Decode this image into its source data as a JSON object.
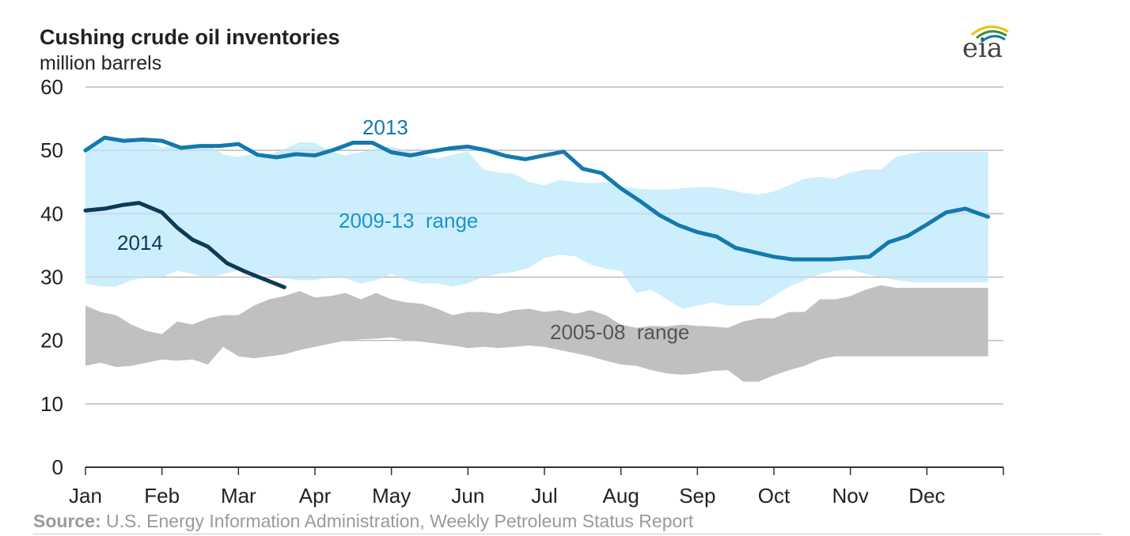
{
  "chart_data": {
    "type": "area",
    "title": "Cushing crude oil inventories",
    "subtitle": "million barrels",
    "ylim": [
      0,
      60
    ],
    "y_ticks": [
      0,
      10,
      20,
      30,
      40,
      50,
      60
    ],
    "grid": true,
    "x_ticks": [
      "Jan",
      "Feb",
      "Mar",
      "Apr",
      "May",
      "Jun",
      "Jul",
      "Aug",
      "Sep",
      "Oct",
      "Nov",
      "Dec"
    ],
    "bands": [
      {
        "name": "2009-13  range",
        "color": "#cdeefc",
        "x": [
          0,
          0.2,
          0.4,
          0.6,
          0.8,
          1.0,
          1.2,
          1.4,
          1.6,
          1.8,
          2.0,
          2.2,
          2.4,
          2.6,
          2.8,
          3.0,
          3.2,
          3.4,
          3.6,
          3.8,
          4.0,
          4.2,
          4.4,
          4.6,
          4.8,
          5.0,
          5.2,
          5.4,
          5.6,
          5.8,
          6.0,
          6.2,
          6.4,
          6.6,
          6.8,
          7.0,
          7.2,
          7.4,
          7.6,
          7.8,
          8.0,
          8.2,
          8.4,
          8.6,
          8.8,
          9.0,
          9.2,
          9.4,
          9.6,
          9.8,
          10.0,
          10.2,
          10.4,
          10.6,
          10.8,
          11.0,
          11.2,
          11.4,
          11.6,
          11.8
        ],
        "upper": [
          50,
          52,
          51.5,
          51.7,
          51.5,
          50.5,
          50.7,
          50.7,
          51,
          49.3,
          49,
          49.5,
          49.2,
          50.2,
          51.3,
          51.2,
          49.8,
          49.2,
          49.7,
          50.3,
          50.6,
          50,
          49.2,
          48.7,
          49.3,
          49.8,
          47,
          46.5,
          46.3,
          45,
          44.5,
          45.3,
          45,
          44.8,
          45,
          44.3,
          44,
          43.8,
          43.8,
          44,
          44.2,
          44.2,
          43.8,
          43.3,
          43,
          43.5,
          44.5,
          45.5,
          45.8,
          45.5,
          46.5,
          47,
          47,
          49,
          49.5,
          49.8,
          49.8,
          49.8,
          49.8,
          49.8
        ],
        "lower": [
          29,
          28.5,
          28.5,
          29.5,
          30,
          30,
          31,
          30.5,
          29.8,
          30.5,
          31,
          30.5,
          30.3,
          29.8,
          29.5,
          29.5,
          30,
          29.8,
          29,
          29.5,
          30.5,
          29.5,
          29,
          29,
          28.5,
          29,
          30,
          30.5,
          30.8,
          31.5,
          33,
          33.5,
          33.3,
          32,
          31.3,
          31,
          27.5,
          28,
          26.5,
          25,
          25.5,
          26,
          25.5,
          25.5,
          25.5,
          27,
          28.5,
          29.5,
          30.5,
          31,
          31.2,
          30.5,
          30,
          29.5,
          29.2,
          29.2,
          29.2,
          29.2,
          29.2,
          29.2
        ]
      },
      {
        "name": "2005-08  range",
        "color": "#c0c0c0",
        "x": [
          0,
          0.2,
          0.4,
          0.6,
          0.8,
          1.0,
          1.2,
          1.4,
          1.6,
          1.8,
          2.0,
          2.2,
          2.4,
          2.6,
          2.8,
          3.0,
          3.2,
          3.4,
          3.6,
          3.8,
          4.0,
          4.2,
          4.4,
          4.6,
          4.8,
          5.0,
          5.2,
          5.4,
          5.6,
          5.8,
          6.0,
          6.2,
          6.4,
          6.6,
          6.8,
          7.0,
          7.2,
          7.4,
          7.6,
          7.8,
          8.0,
          8.2,
          8.4,
          8.6,
          8.8,
          9.0,
          9.2,
          9.4,
          9.6,
          9.8,
          10.0,
          10.2,
          10.4,
          10.6,
          10.8,
          11.0,
          11.2,
          11.4,
          11.6,
          11.8
        ],
        "upper": [
          25.5,
          24.5,
          24,
          22.5,
          21.5,
          21,
          23,
          22.5,
          23.5,
          24,
          24,
          25.5,
          26.5,
          27,
          27.8,
          26.8,
          27,
          27.5,
          26.5,
          27.5,
          26.5,
          26,
          25.8,
          25,
          24,
          24.5,
          24.5,
          24.2,
          24.8,
          25,
          24.5,
          24.8,
          24.2,
          24.8,
          24,
          22.5,
          22,
          22.3,
          22.2,
          22.5,
          22.3,
          22.2,
          22,
          23,
          23.5,
          23.5,
          24.5,
          24.5,
          26.5,
          26.5,
          27,
          28,
          28.7,
          28.3,
          28.3,
          28.3,
          28.3,
          28.3,
          28.3,
          28.3
        ],
        "lower": [
          16,
          16.5,
          15.8,
          16,
          16.5,
          17,
          16.8,
          17,
          16.2,
          19,
          17.5,
          17.2,
          17.5,
          17.8,
          18.5,
          19,
          19.5,
          20,
          20.2,
          20.3,
          20.5,
          20,
          19.8,
          19.5,
          19.2,
          18.8,
          19,
          18.8,
          19,
          19.2,
          19,
          18.5,
          18,
          17.5,
          16.8,
          16.2,
          16,
          15.3,
          14.8,
          14.6,
          14.8,
          15.2,
          15.3,
          13.5,
          13.5,
          14.5,
          15.3,
          16,
          17,
          17.5,
          17.5,
          17.5,
          17.5,
          17.5,
          17.5,
          17.5,
          17.5,
          17.5,
          17.5,
          17.5
        ]
      }
    ],
    "series": [
      {
        "name": "2013",
        "color": "#1479ad",
        "x": [
          0,
          0.25,
          0.5,
          0.75,
          1.0,
          1.25,
          1.5,
          1.75,
          2.0,
          2.25,
          2.5,
          2.75,
          3.0,
          3.25,
          3.5,
          3.75,
          4.0,
          4.25,
          4.5,
          4.75,
          5.0,
          5.25,
          5.5,
          5.75,
          6.0,
          6.25,
          6.5,
          6.75,
          7.0,
          7.25,
          7.5,
          7.75,
          8.0,
          8.25,
          8.5,
          8.75,
          9.0,
          9.25,
          9.5,
          9.75,
          10.0,
          10.25,
          10.5,
          10.75,
          11.0,
          11.25,
          11.5,
          11.8
        ],
        "values": [
          50,
          52,
          51.5,
          51.7,
          51.5,
          50.4,
          50.7,
          50.7,
          51,
          49.3,
          48.9,
          49.4,
          49.2,
          50.1,
          51.2,
          51.2,
          49.7,
          49.2,
          49.8,
          50.3,
          50.6,
          50,
          49.1,
          48.6,
          49.2,
          49.8,
          47.1,
          46.4,
          44,
          42,
          39.8,
          38.2,
          37.1,
          36.4,
          34.6,
          33.9,
          33.2,
          32.8,
          32.8,
          32.8,
          33,
          33.2,
          35.5,
          36.5,
          38.3,
          40.2,
          40.8,
          39.5
        ]
      },
      {
        "name": "2014",
        "color": "#0d3a57",
        "x": [
          0,
          0.25,
          0.5,
          0.7,
          1.0,
          1.2,
          1.4,
          1.6,
          1.85,
          2.1,
          2.35,
          2.6
        ],
        "values": [
          40.5,
          40.8,
          41.4,
          41.7,
          40.2,
          37.8,
          35.9,
          34.8,
          32.2,
          30.8,
          29.6,
          28.4
        ]
      }
    ]
  },
  "source_label": "Source:",
  "source_text": " U.S. Energy Information Administration, Weekly Petroleum Status Report",
  "logo_text": "eia",
  "colors": {
    "grid": "#bdbdbd",
    "axis": "#333333",
    "label_2013": "#1479ad",
    "label_2014": "#0d3a57",
    "label_range_2009": "#1b93cc",
    "label_range_2005": "#555555"
  }
}
